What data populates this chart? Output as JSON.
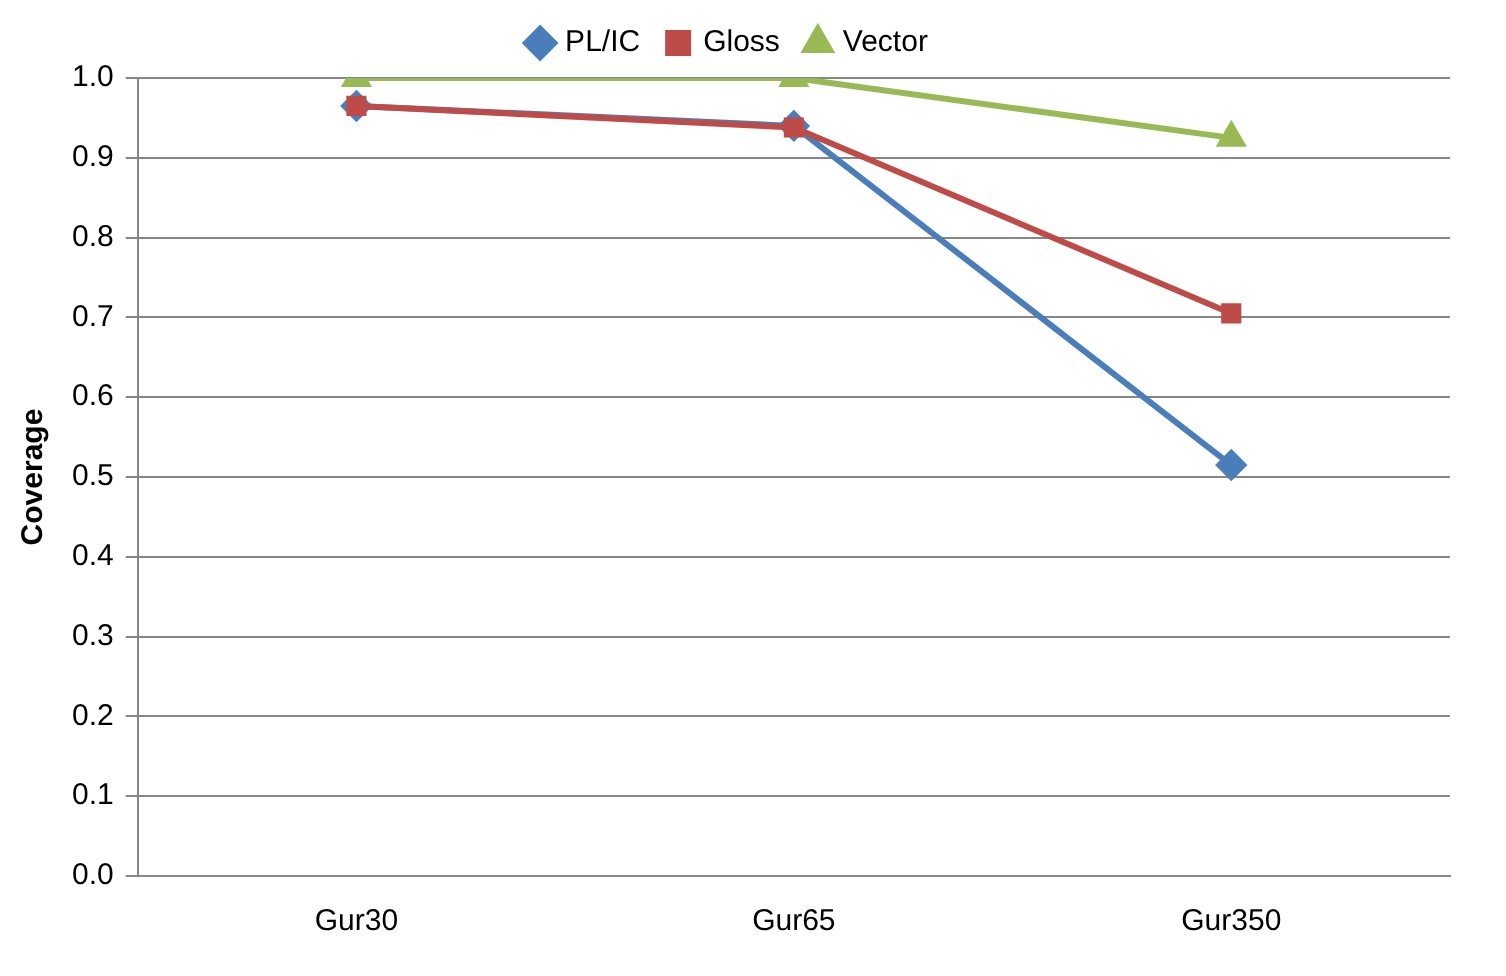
{
  "chart_data": {
    "type": "line",
    "ylabel": "Coverage",
    "categories": [
      "Gur30",
      "Gur65",
      "Gur350"
    ],
    "series": [
      {
        "name": "PL/IC",
        "color": "#4a7ebb",
        "marker": "diamond",
        "values": [
          0.965,
          0.94,
          0.515
        ]
      },
      {
        "name": "Gloss",
        "color": "#be4b48",
        "marker": "square",
        "values": [
          0.965,
          0.938,
          0.705
        ]
      },
      {
        "name": "Vector",
        "color": "#98b954",
        "marker": "triangle",
        "values": [
          1.0,
          1.0,
          0.925
        ]
      }
    ],
    "ylim": [
      0,
      1
    ],
    "yticks": [
      {
        "value": 0,
        "label": "0.0"
      },
      {
        "value": 0.1,
        "label": "0.1"
      },
      {
        "value": 0.2,
        "label": "0.2"
      },
      {
        "value": 0.3,
        "label": "0.3"
      },
      {
        "value": 0.4,
        "label": "0.4"
      },
      {
        "value": 0.5,
        "label": "0.5"
      },
      {
        "value": 0.6,
        "label": "0.6"
      },
      {
        "value": 0.7,
        "label": "0.7"
      },
      {
        "value": 0.8,
        "label": "0.8"
      },
      {
        "value": 0.9,
        "label": "0.9"
      },
      {
        "value": 1,
        "label": "1.0"
      }
    ],
    "grid": "y",
    "legend": "top",
    "line_style": "solid"
  }
}
